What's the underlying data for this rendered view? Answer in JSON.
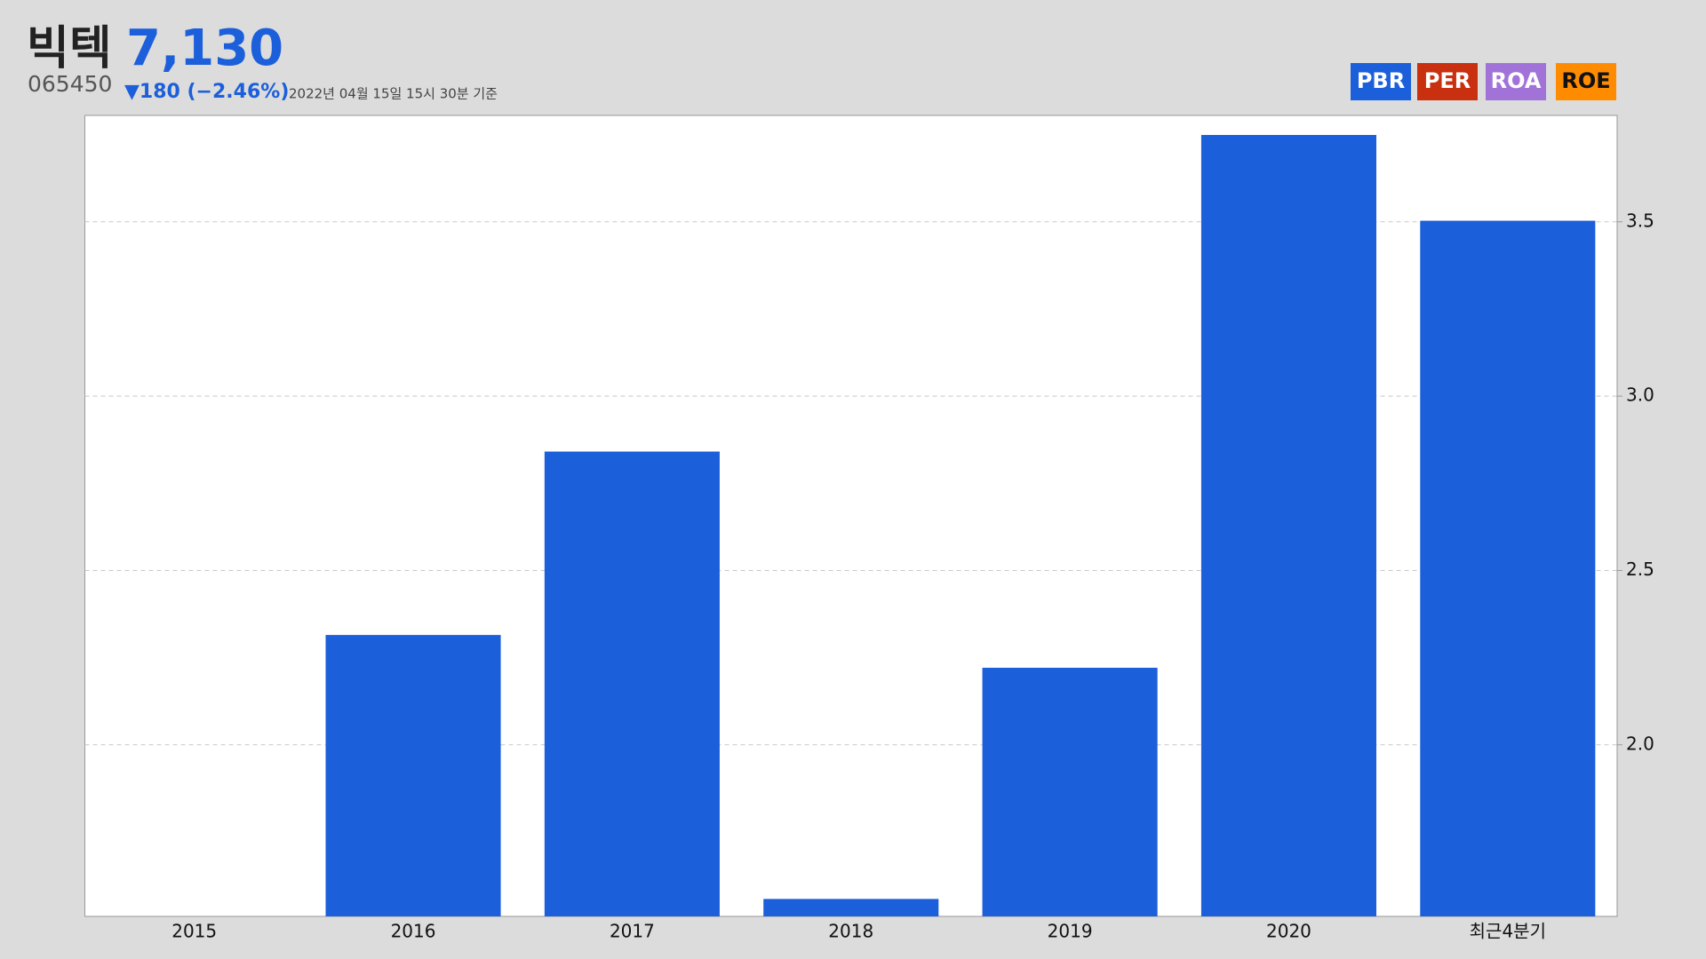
{
  "header": {
    "name": "빅텍",
    "price": "7,130",
    "code": "065450",
    "change": "▼180 (−2.46%)",
    "timestamp": "2022년 04월 15일 15시 30분 기준"
  },
  "tabs": [
    {
      "label": "PBR",
      "color": "#1c5fdb",
      "text_color": "#ffffff"
    },
    {
      "label": "PER",
      "color": "#c8300f",
      "text_color": "#ffffff"
    },
    {
      "label": "ROA",
      "color": "#a173d9",
      "text_color": "#ffffff"
    },
    {
      "label": "ROE",
      "color": "#ff8c00",
      "text_color": "#111111"
    }
  ],
  "chart_data": {
    "type": "bar",
    "categories": [
      "2015",
      "2016",
      "2017",
      "2018",
      "2019",
      "2020",
      "최근4분기"
    ],
    "values": [
      null,
      2.315,
      2.841,
      1.558,
      2.221,
      3.749,
      3.503
    ],
    "color": "#1c5fdb",
    "ylim": [
      1.508,
      3.805
    ],
    "yticks": [
      {
        "value": 2.0,
        "label": "2.0"
      },
      {
        "value": 2.5,
        "label": "2.5"
      },
      {
        "value": 3.0,
        "label": "3.0"
      },
      {
        "value": 3.5,
        "label": "3.5"
      }
    ],
    "grid": true
  }
}
